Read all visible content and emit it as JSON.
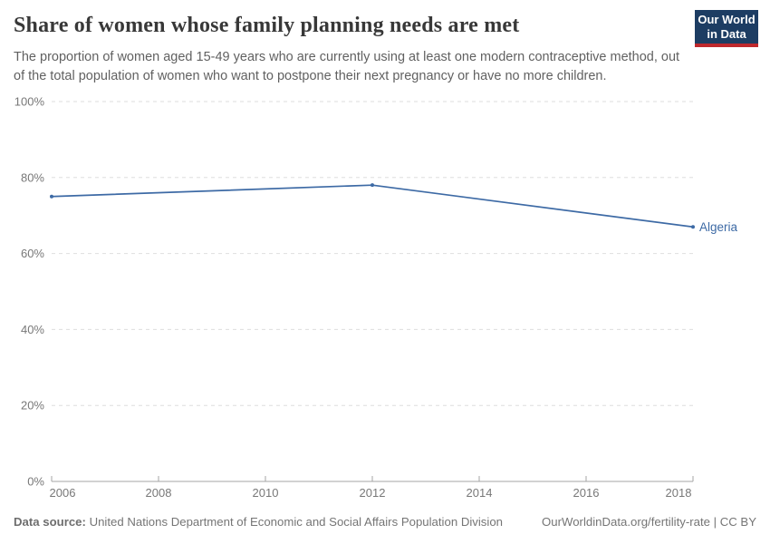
{
  "header": {
    "title": "Share of women whose family planning needs are met",
    "subtitle": "The proportion of women aged 15-49 years who are currently using at least one modern contraceptive method, out of the total population of women who want to postpone their next pregnancy or have no more children.",
    "logo": {
      "line1": "Our World",
      "line2": "in Data",
      "bg_color": "#1d3d63",
      "stripe_color": "#be282d"
    }
  },
  "chart_data": {
    "type": "line",
    "title": "Share of women whose family planning needs are met",
    "series": [
      {
        "name": "Algeria",
        "color": "#3d6aa5",
        "x": [
          2006,
          2012,
          2018
        ],
        "values": [
          75,
          78,
          67
        ]
      }
    ],
    "xlim": [
      2006,
      2018
    ],
    "ylim": [
      0,
      100
    ],
    "x_ticks": [
      2006,
      2008,
      2010,
      2012,
      2014,
      2016,
      2018
    ],
    "y_ticks": [
      0,
      20,
      40,
      60,
      80,
      100
    ],
    "y_tick_suffix": "%",
    "xlabel": "",
    "ylabel": "",
    "grid": "horizontal-dashed",
    "legend_position": "end-of-line-label"
  },
  "footer": {
    "source_label": "Data source:",
    "source_text": "United Nations Department of Economic and Social Affairs Population Division",
    "credit": "OurWorldinData.org/fertility-rate | CC BY"
  },
  "colors": {
    "line": "#3d6aa5",
    "grid": "#dedede",
    "axis": "#a5a5a5",
    "tick_label": "#787878",
    "title": "#383838",
    "subtitle": "#616161",
    "footer": "#757575"
  }
}
